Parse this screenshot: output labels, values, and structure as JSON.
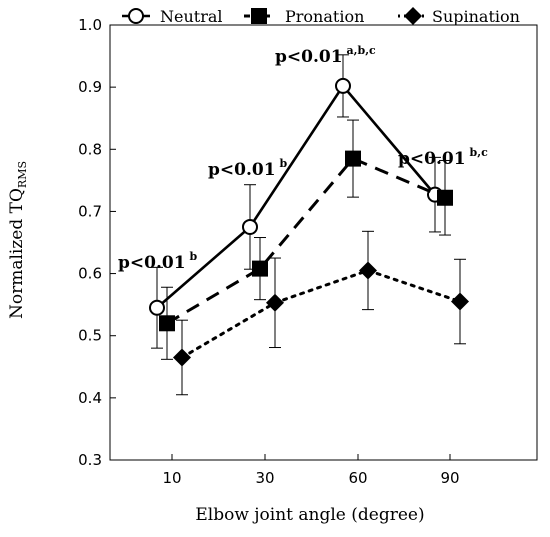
{
  "chart_data": {
    "type": "line",
    "xlabel": "Elbow joint angle (degree)",
    "ylabel": "Normalized TQ",
    "ylabel_sub": "RMS",
    "categories": [
      "10",
      "30",
      "60",
      "90"
    ],
    "ylim": [
      0.3,
      1.0
    ],
    "yticks": [
      "0.3",
      "0.4",
      "0.5",
      "0.6",
      "0.7",
      "0.8",
      "0.9",
      "1.0"
    ],
    "grid": false,
    "legend_position": "top",
    "series": [
      {
        "name": "Neutral",
        "marker": "circle-open",
        "line": "solid",
        "values": [
          0.545,
          0.675,
          0.902,
          0.727
        ],
        "errors": [
          0.065,
          0.068,
          0.05,
          0.06
        ]
      },
      {
        "name": "Pronation",
        "marker": "square",
        "line": "dashed",
        "values": [
          0.52,
          0.608,
          0.785,
          0.722
        ],
        "errors": [
          0.058,
          0.05,
          0.062,
          0.06
        ]
      },
      {
        "name": "Supination",
        "marker": "diamond",
        "line": "dotted",
        "values": [
          0.465,
          0.553,
          0.605,
          0.555
        ],
        "errors": [
          0.06,
          0.072,
          0.063,
          0.068
        ]
      }
    ],
    "annotations": [
      {
        "text": "p<0.01",
        "sup": "b",
        "category": "10"
      },
      {
        "text": "p<0.01",
        "sup": "b",
        "category": "30"
      },
      {
        "text": "p<0.01",
        "sup": "a,b,c",
        "category": "60"
      },
      {
        "text": "p<0.01",
        "sup": "b,c",
        "category": "90"
      }
    ]
  }
}
